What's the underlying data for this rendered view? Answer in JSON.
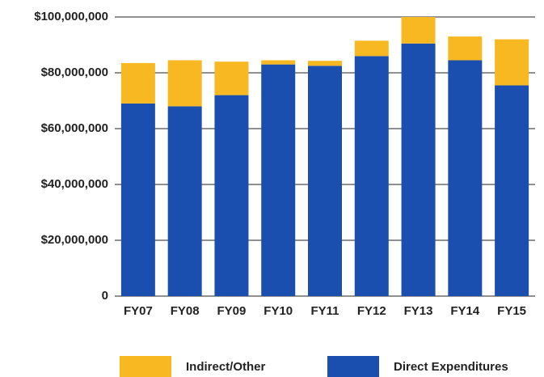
{
  "chart_data": {
    "type": "stacked_bar",
    "categories": [
      "FY07",
      "FY08",
      "FY09",
      "FY10",
      "FY11",
      "FY12",
      "FY13",
      "FY14",
      "FY15"
    ],
    "series": [
      {
        "name": "Direct Expenditures",
        "color": "#1a4fb0",
        "values": [
          69000000,
          68000000,
          72000000,
          83000000,
          82500000,
          86000000,
          90500000,
          84500000,
          75500000
        ]
      },
      {
        "name": "Indirect/Other",
        "color": "#f7b822",
        "values": [
          14500000,
          16500000,
          12000000,
          1500000,
          1800000,
          5500000,
          9500000,
          8500000,
          16500000
        ]
      }
    ],
    "ylim": [
      0,
      100000000
    ],
    "yticks": [
      0,
      {
        "value": 20000000,
        "label": "$20,000,000"
      },
      {
        "value": 40000000,
        "label": "$40,000,000"
      },
      {
        "value": 60000000,
        "label": "$60,000,000"
      },
      {
        "value": 80000000,
        "label": "$80,000,000"
      },
      {
        "value": 100000000,
        "label": "$100,000,000"
      }
    ],
    "grid": true
  }
}
